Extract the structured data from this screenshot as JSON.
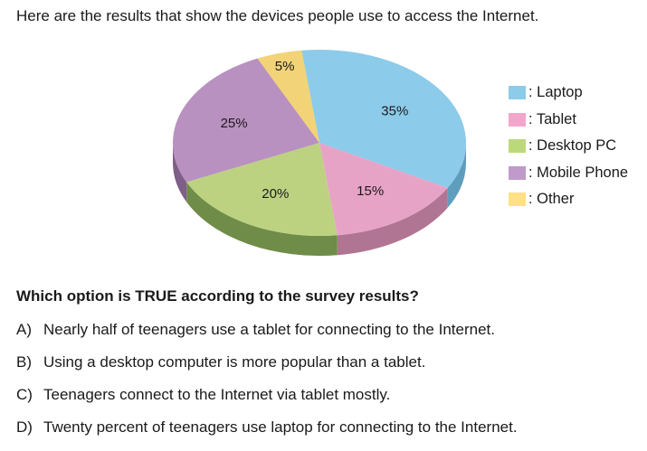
{
  "intro": "Here are the results that show the devices people use to access the Internet.",
  "chart_data": {
    "type": "pie",
    "style": "3d",
    "slices": [
      {
        "label": "Laptop",
        "value": 35,
        "text": "35%",
        "color": "#8ccbe9",
        "side": "#5f9dbd"
      },
      {
        "label": "Tablet",
        "value": 15,
        "text": "15%",
        "color": "#e7a3c6",
        "side": "#b07592"
      },
      {
        "label": "Desktop PC",
        "value": 20,
        "text": "20%",
        "color": "#bcd280",
        "side": "#6f8c48"
      },
      {
        "label": "Mobile Phone",
        "value": 25,
        "text": "25%",
        "color": "#b991c0",
        "side": "#7f5e87"
      },
      {
        "label": "Other",
        "value": 5,
        "text": "5%",
        "color": "#f2d377",
        "side": "#c4a650"
      }
    ],
    "legend_position": "right"
  },
  "legend": [
    {
      "label": ": Laptop",
      "color": "#8ccbe9"
    },
    {
      "label": ": Tablet",
      "color": "#f2a6cc"
    },
    {
      "label": ": Desktop PC",
      "color": "#bcd97a"
    },
    {
      "label": ": Mobile Phone",
      "color": "#bf9acb"
    },
    {
      "label": ": Other",
      "color": "#fde184"
    }
  ],
  "question": "Which option is TRUE according to the survey results?",
  "options": [
    {
      "letter": "A)",
      "text": "Nearly half of teenagers use a tablet for connecting to the Internet."
    },
    {
      "letter": "B)",
      "text": "Using a desktop computer is more popular than a tablet."
    },
    {
      "letter": "C)",
      "text": "Teenagers connect to the Internet via tablet mostly."
    },
    {
      "letter": "D)",
      "text": "Twenty percent of teenagers use laptop for connecting to the Internet."
    }
  ]
}
